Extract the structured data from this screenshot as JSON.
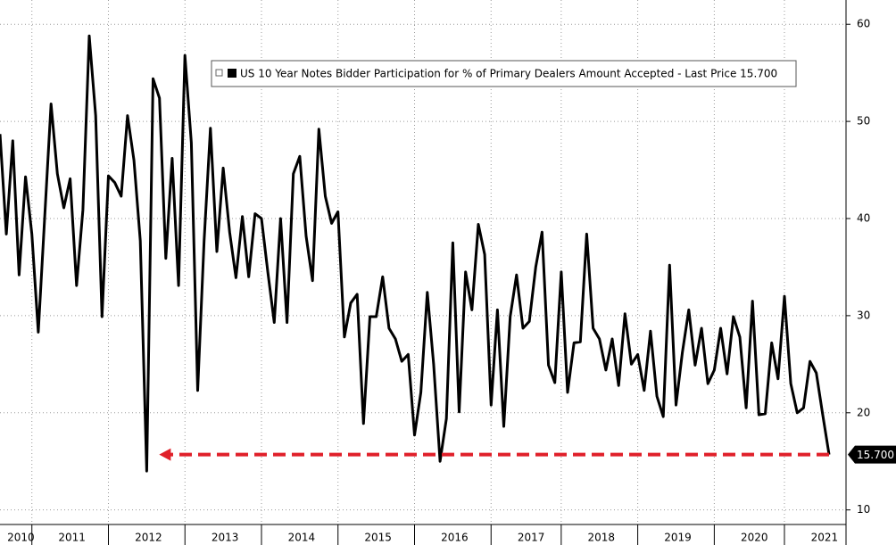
{
  "chart_data": {
    "type": "line",
    "series": [
      {
        "name": "US 10 Year Notes Bidder Participation for % of Primary Dealers Amount Accepted - Last Price 15.700",
        "color": "#000000",
        "values": [
          48.7,
          38.4,
          48,
          34.2,
          44.3,
          38.4,
          28.3,
          40,
          51.8,
          44.6,
          41.1,
          44.1,
          33.1,
          40.9,
          58.8,
          50.6,
          29.9,
          44.4,
          43.7,
          42.3,
          50.6,
          46,
          37.7,
          14,
          54.4,
          52.4,
          35.9,
          46.2,
          33.1,
          56.8,
          47.8,
          22.3,
          37.7,
          49.3,
          36.6,
          45.2,
          38.6,
          33.9,
          40.2,
          34,
          40.5,
          40,
          34.5,
          29.3,
          40,
          29.3,
          44.6,
          46.4,
          38.2,
          33.6,
          49.2,
          42.3,
          39.5,
          40.7,
          27.8,
          31.3,
          32.2,
          18.9,
          29.9,
          29.9,
          34,
          28.7,
          27.6,
          25.3,
          26,
          17.7,
          22.1,
          32.4,
          25,
          15,
          19.4,
          37.5,
          20.1,
          34.5,
          30.6,
          39.4,
          36.3,
          20.8,
          30.6,
          18.6,
          29.9,
          34.2,
          28.7,
          29.4,
          35,
          38.6,
          24.9,
          23.1,
          34.5,
          22.1,
          27.2,
          27.3,
          38.4,
          28.7,
          27.6,
          24.4,
          27.6,
          22.8,
          30.2,
          25,
          26,
          22.3,
          28.4,
          21.7,
          19.6,
          35.2,
          20.8,
          26.2,
          30.6,
          24.9,
          28.7,
          23,
          24.4,
          28.7,
          24,
          29.9,
          27.8,
          20.5,
          31.5,
          19.8,
          19.9,
          27.2,
          23.5,
          32,
          23,
          20,
          20.5,
          25.3,
          24.1,
          19.8,
          15.7
        ]
      }
    ],
    "categories": [
      null,
      null,
      null,
      "2010",
      null,
      null,
      null,
      null,
      null,
      null,
      null,
      "2011",
      null,
      null,
      null,
      null,
      null,
      null,
      null,
      null,
      null,
      null,
      null,
      "2012",
      null,
      null,
      null,
      null,
      null,
      null,
      null,
      null,
      null,
      null,
      null,
      "2013",
      null,
      null,
      null,
      null,
      null,
      null,
      null,
      null,
      null,
      null,
      null,
      "2014",
      null,
      null,
      null,
      null,
      null,
      null,
      null,
      null,
      null,
      null,
      null,
      "2015",
      null,
      null,
      null,
      null,
      null,
      null,
      null,
      null,
      null,
      null,
      null,
      "2016",
      null,
      null,
      null,
      null,
      null,
      null,
      null,
      null,
      null,
      null,
      null,
      "2017",
      null,
      null,
      null,
      null,
      null,
      null,
      null,
      null,
      null,
      null,
      "2018",
      null,
      null,
      null,
      null,
      null,
      null,
      null,
      null,
      null,
      null,
      null,
      "2019",
      null,
      null,
      null,
      null,
      null,
      null,
      null,
      null,
      null,
      null,
      null,
      "2020",
      null,
      null,
      null,
      null,
      null,
      null,
      null,
      null,
      null,
      null,
      "2021",
      null
    ],
    "last_value_label": "15.700",
    "ylim": [
      8.5,
      62.5
    ],
    "yticks": [
      10,
      20,
      30,
      40,
      50,
      60
    ],
    "grid": true,
    "legend": "top"
  }
}
